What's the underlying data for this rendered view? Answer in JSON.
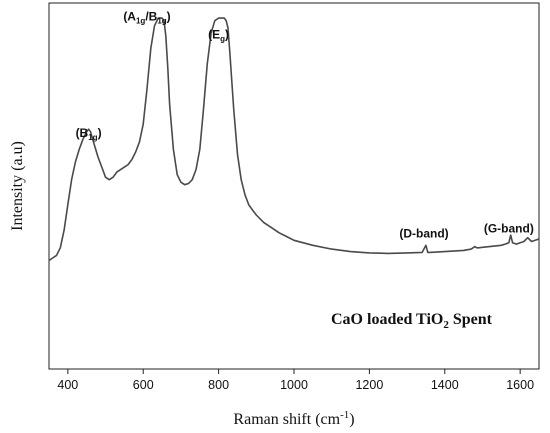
{
  "chart_data": {
    "type": "line",
    "title": "",
    "xlabel": {
      "main": "Raman shift (cm",
      "sup": "-1",
      "end": ")"
    },
    "ylabel": "Intensity (a.u)",
    "xlim": [
      350,
      1650
    ],
    "ylim": [
      -0.45,
      1.0
    ],
    "x_ticks": [
      400,
      600,
      800,
      1000,
      1200,
      1400,
      1600
    ],
    "y_ticks_labeled": false,
    "grid": false,
    "legend": "none",
    "line_color": "#4a4a4a",
    "annotation": {
      "before": "CaO loaded TiO",
      "sub": "2",
      "after": " Spent"
    },
    "peak_labels": [
      {
        "x": 455,
        "y": 0.47,
        "base": "(B",
        "sub": "1g",
        "after": ")"
      },
      {
        "x": 610,
        "y": 0.93,
        "base": "(A",
        "sub": "1g",
        "mid": "/B",
        "sub2": "1g",
        "after": ")"
      },
      {
        "x": 800,
        "y": 0.86,
        "base": "(E",
        "sub": "g",
        "after": ")"
      },
      {
        "x": 1345,
        "y": 0.07,
        "text": "(D-band)"
      },
      {
        "x": 1570,
        "y": 0.09,
        "text": "(G-band)"
      }
    ],
    "series": [
      {
        "x": [
          350,
          360,
          370,
          380,
          390,
          400,
          410,
          420,
          430,
          440,
          450,
          455,
          460,
          470,
          480,
          490,
          500,
          510,
          520,
          530,
          540,
          550,
          560,
          570,
          580,
          590,
          600,
          610,
          620,
          630,
          640,
          645,
          650,
          655,
          660,
          665,
          670,
          680,
          690,
          700,
          710,
          720,
          730,
          740,
          750,
          760,
          770,
          780,
          790,
          800,
          805,
          810,
          815,
          820,
          825,
          830,
          840,
          850,
          860,
          870,
          880,
          890,
          900,
          920,
          940,
          960,
          980,
          1000,
          1050,
          1100,
          1150,
          1200,
          1250,
          1300,
          1340,
          1350,
          1355,
          1360,
          1400,
          1450,
          1470,
          1480,
          1485,
          1490,
          1500,
          1550,
          1560,
          1570,
          1575,
          1580,
          1590,
          1600,
          1610,
          1620,
          1630,
          1640,
          1650
        ],
        "values": [
          -0.02,
          -0.01,
          0.0,
          0.03,
          0.1,
          0.2,
          0.3,
          0.37,
          0.42,
          0.46,
          0.49,
          0.5,
          0.49,
          0.44,
          0.39,
          0.35,
          0.31,
          0.3,
          0.31,
          0.33,
          0.34,
          0.35,
          0.36,
          0.38,
          0.41,
          0.45,
          0.52,
          0.66,
          0.82,
          0.91,
          0.94,
          0.94,
          0.94,
          0.93,
          0.87,
          0.75,
          0.6,
          0.42,
          0.32,
          0.29,
          0.28,
          0.285,
          0.3,
          0.34,
          0.42,
          0.58,
          0.76,
          0.88,
          0.93,
          0.94,
          0.94,
          0.94,
          0.94,
          0.93,
          0.9,
          0.8,
          0.58,
          0.4,
          0.3,
          0.24,
          0.2,
          0.18,
          0.16,
          0.13,
          0.11,
          0.09,
          0.075,
          0.06,
          0.04,
          0.025,
          0.015,
          0.01,
          0.008,
          0.01,
          0.012,
          0.04,
          0.012,
          0.012,
          0.015,
          0.02,
          0.025,
          0.035,
          0.03,
          0.03,
          0.032,
          0.04,
          0.045,
          0.05,
          0.08,
          0.05,
          0.045,
          0.05,
          0.055,
          0.07,
          0.055,
          0.06,
          0.065
        ]
      }
    ]
  }
}
